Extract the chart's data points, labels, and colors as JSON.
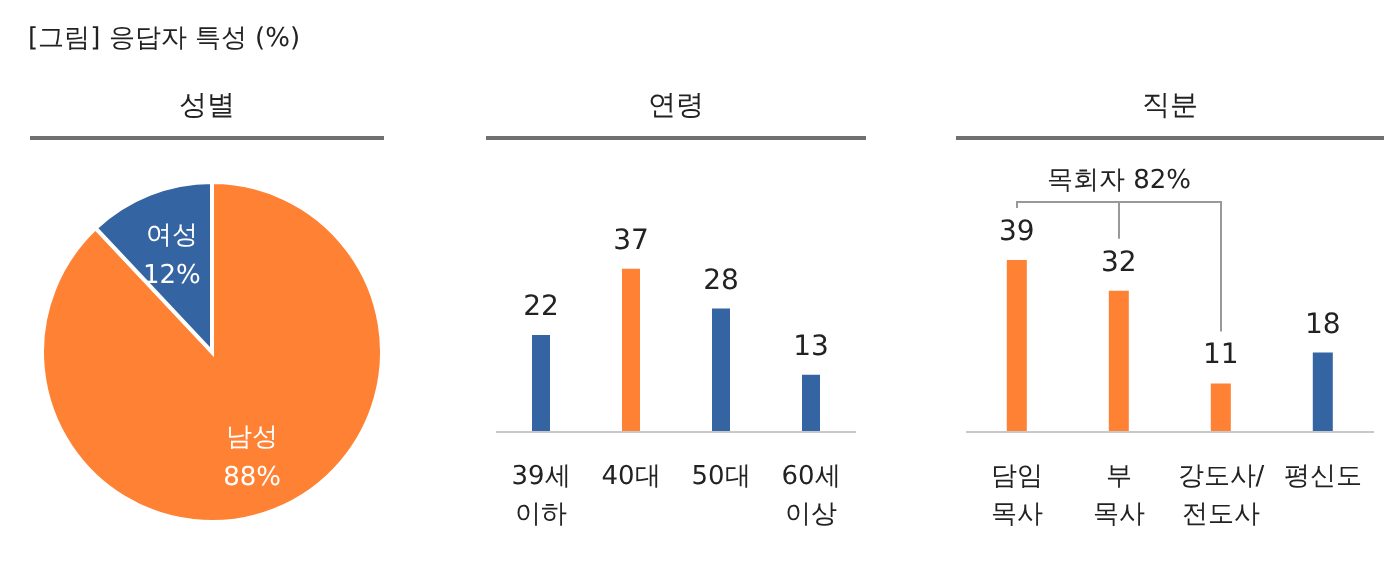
{
  "chart_data": [
    {
      "type": "pie",
      "title": "성별",
      "annotations": [
        "[그림] 응답자 특성 (%)"
      ],
      "categories": [
        "남성",
        "여성"
      ],
      "values": [
        88,
        12
      ],
      "colors": [
        "#ff8133",
        "#3564a2"
      ],
      "value_labels": [
        "88%",
        "12%"
      ]
    },
    {
      "type": "bar",
      "title": "연령",
      "categories": [
        "39세\n이하",
        "40대",
        "50대",
        "60세\n이상"
      ],
      "values": [
        22,
        37,
        28,
        13
      ],
      "colors": [
        "#3564a2",
        "#ff8133",
        "#3564a2",
        "#3564a2"
      ],
      "data_labels": true
    },
    {
      "type": "bar",
      "title": "직분",
      "annotations": [
        "목회자 82%"
      ],
      "categories": [
        "담임\n목사",
        "부\n목사",
        "강도사/\n전도사",
        "평신도"
      ],
      "values": [
        39,
        32,
        11,
        18
      ],
      "colors": [
        "#ff8133",
        "#ff8133",
        "#ff8133",
        "#3564a2"
      ],
      "data_labels": true
    }
  ]
}
